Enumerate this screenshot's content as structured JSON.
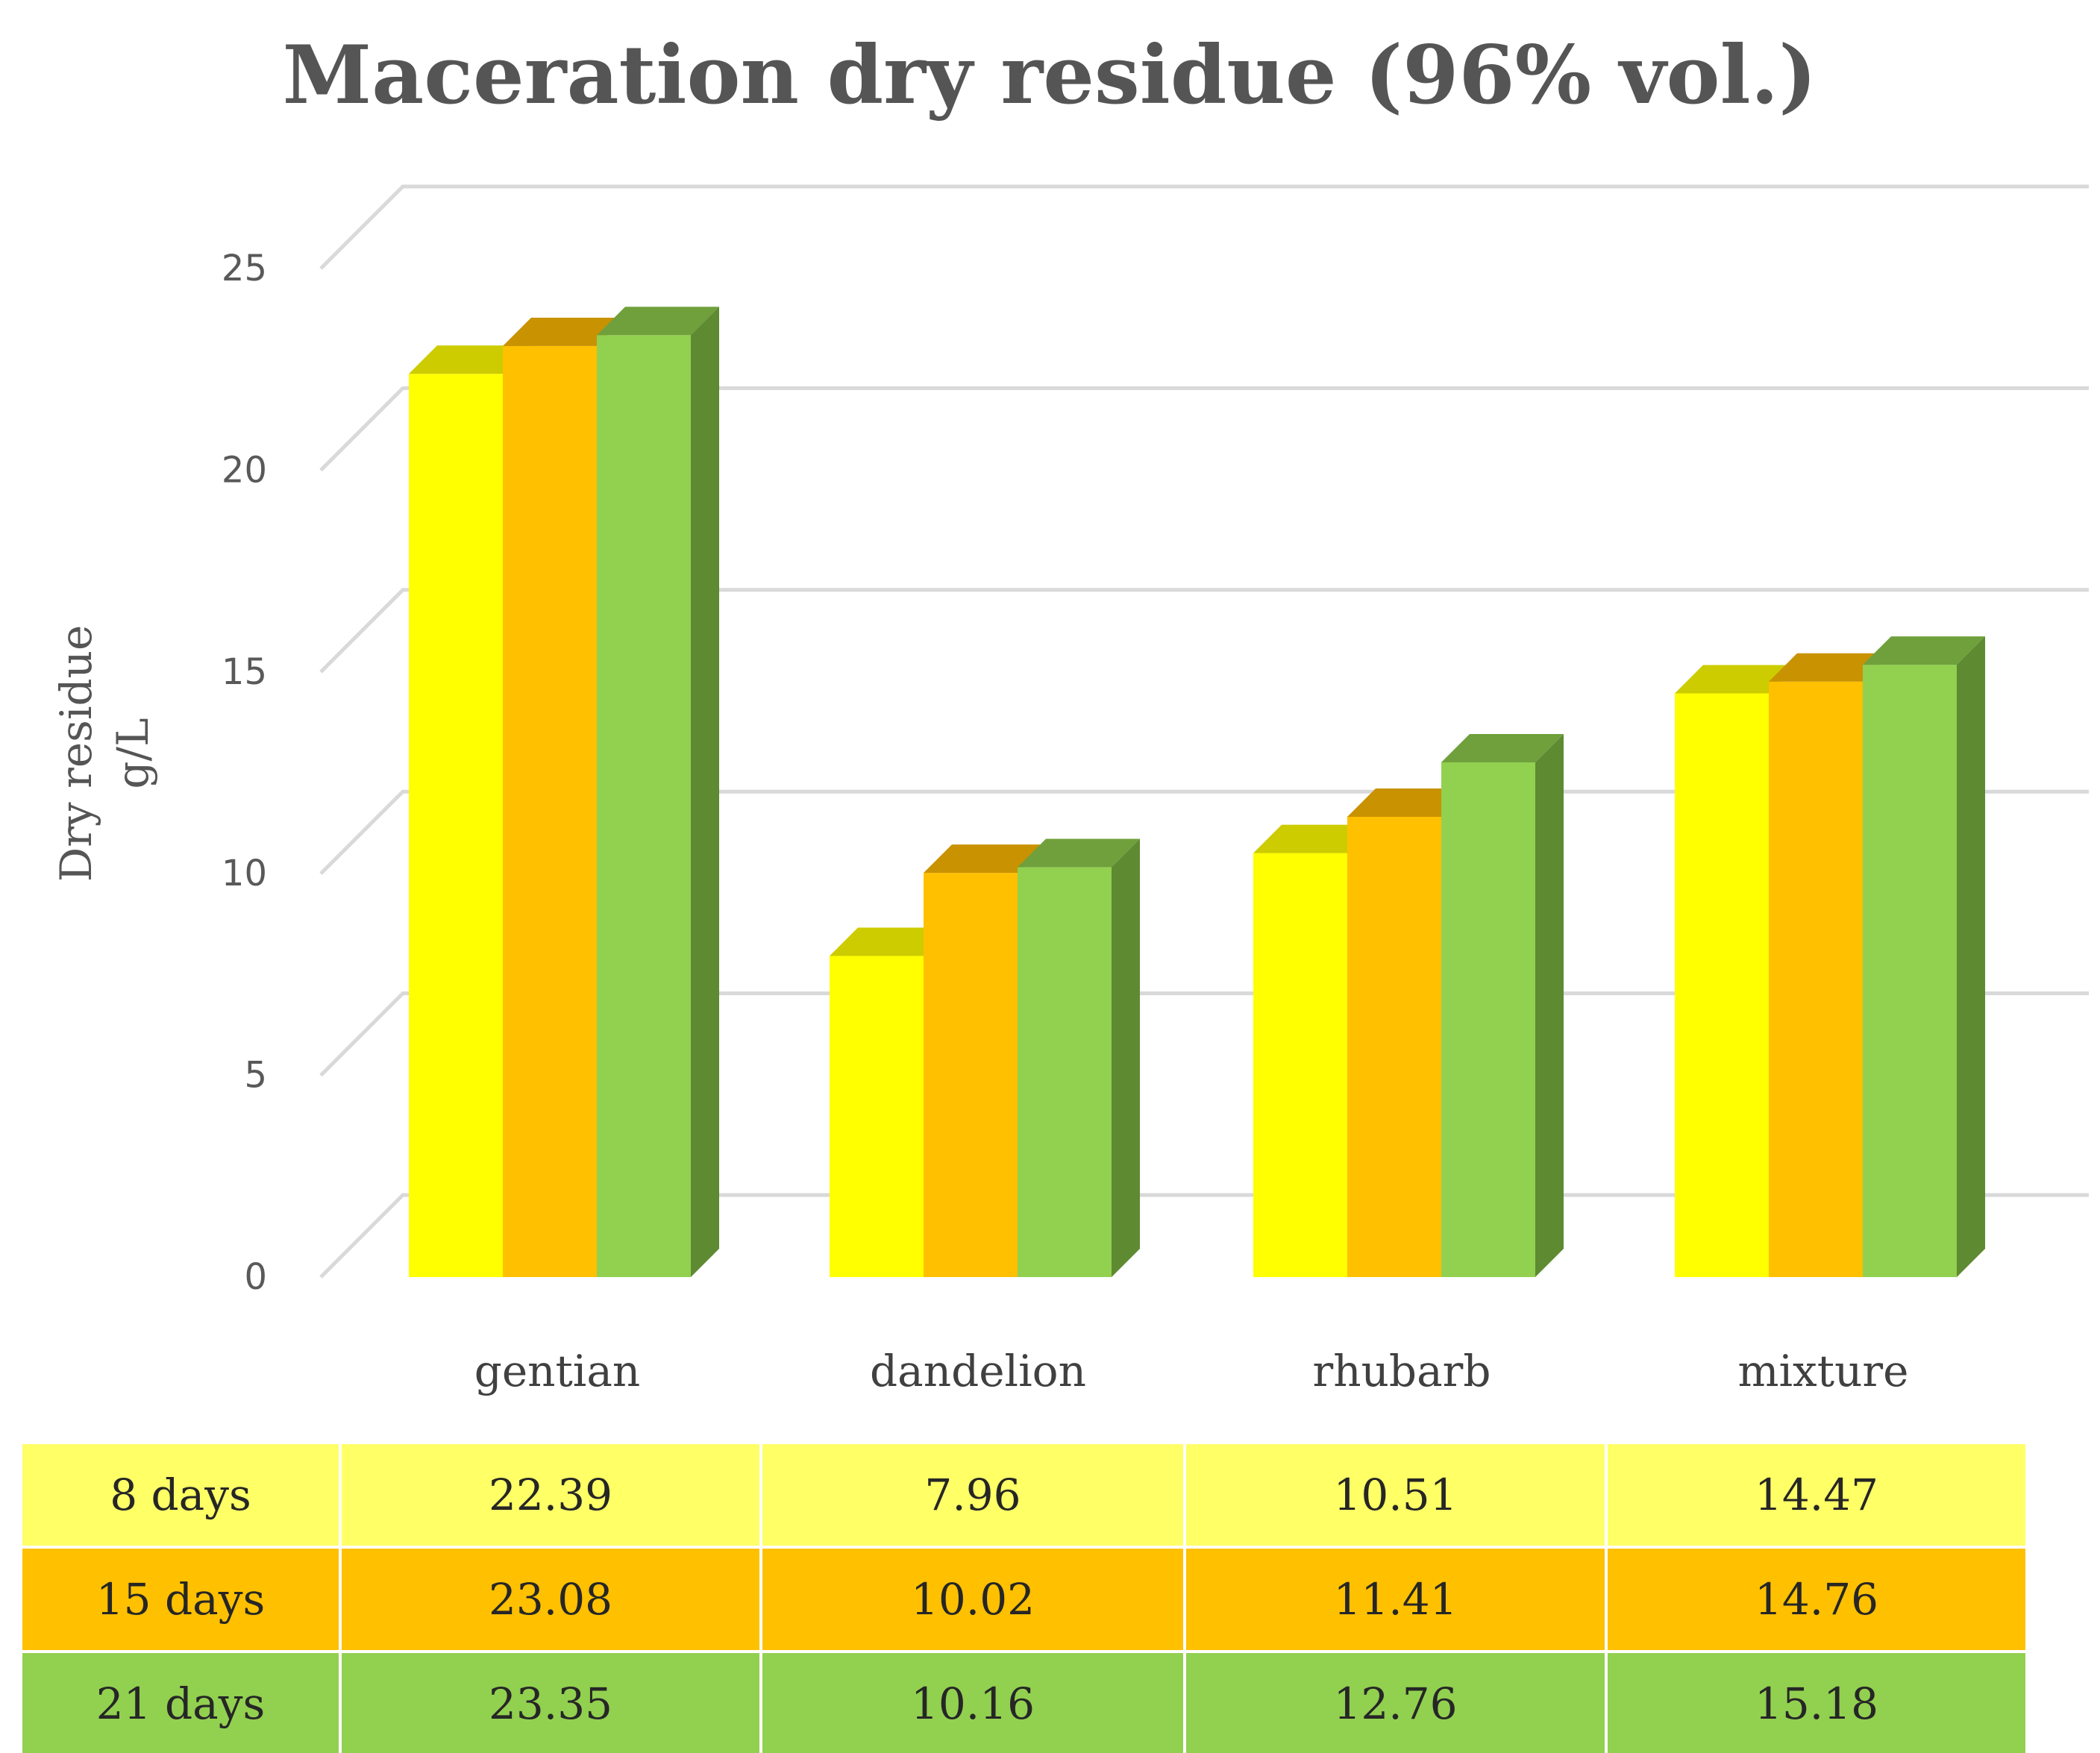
{
  "chart_data": {
    "type": "bar",
    "title": "Maceration dry residue (96% vol.)",
    "ylabel_lines": [
      "Dry residue",
      "g/L"
    ],
    "xlabel": "",
    "ylim": [
      0,
      25
    ],
    "yticks": [
      0,
      5,
      10,
      15,
      20,
      25
    ],
    "grid": true,
    "categories": [
      "gentian",
      "dandelion",
      "rhubarb",
      "mixture"
    ],
    "series": [
      {
        "name": "8 days",
        "values": [
          22.39,
          7.96,
          10.51,
          14.47
        ],
        "color": "#ffff00",
        "top_color": "#cccc00",
        "side_color": "#b3b300",
        "row_color": "#ffff66"
      },
      {
        "name": "15 days",
        "values": [
          23.08,
          10.02,
          11.41,
          14.76
        ],
        "color": "#ffc000",
        "top_color": "#c99200",
        "side_color": "#b38600",
        "row_color": "#ffc000"
      },
      {
        "name": "21 days",
        "values": [
          23.35,
          10.16,
          12.76,
          15.18
        ],
        "color": "#92d050",
        "top_color": "#70a03c",
        "side_color": "#5e8a32",
        "row_color": "#92d050"
      }
    ],
    "data_table": true
  }
}
